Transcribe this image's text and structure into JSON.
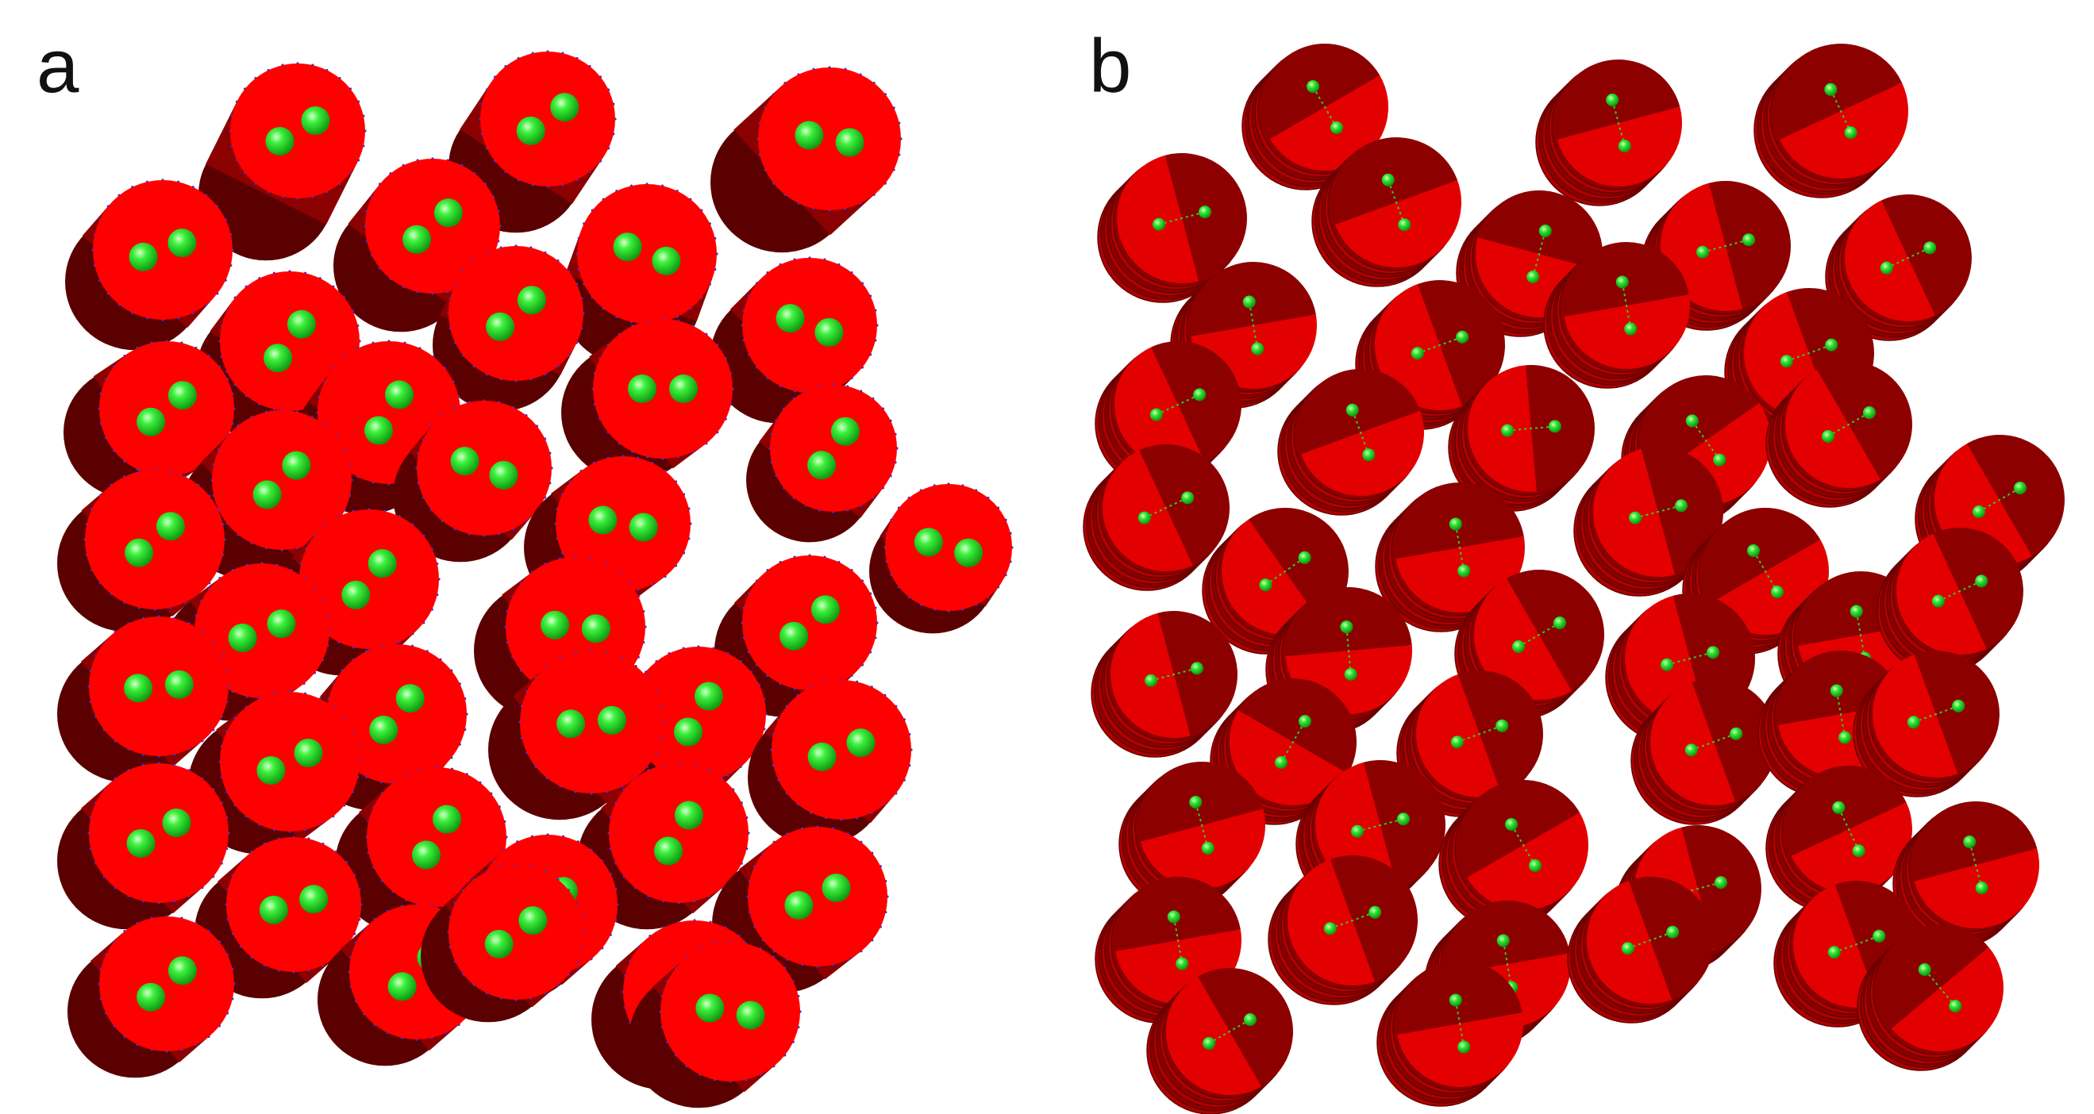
{
  "panels": [
    {
      "label": "a",
      "style": "sphere-pair",
      "colors": {
        "cylinder_top": "#ff0000",
        "cylinder_side": "#8b0000",
        "shadow": "#5a0000",
        "sphere": "#22dd22",
        "sphere_highlight": "#b8ffb0",
        "node_points": "#1a3cff"
      }
    },
    {
      "label": "b",
      "style": "split-disc",
      "colors": {
        "disc_light": "#e30000",
        "disc_dark": "#8c0000",
        "disc_mid": "#b00000",
        "sphere": "#22dd22",
        "bond": "#33cc33"
      }
    }
  ]
}
